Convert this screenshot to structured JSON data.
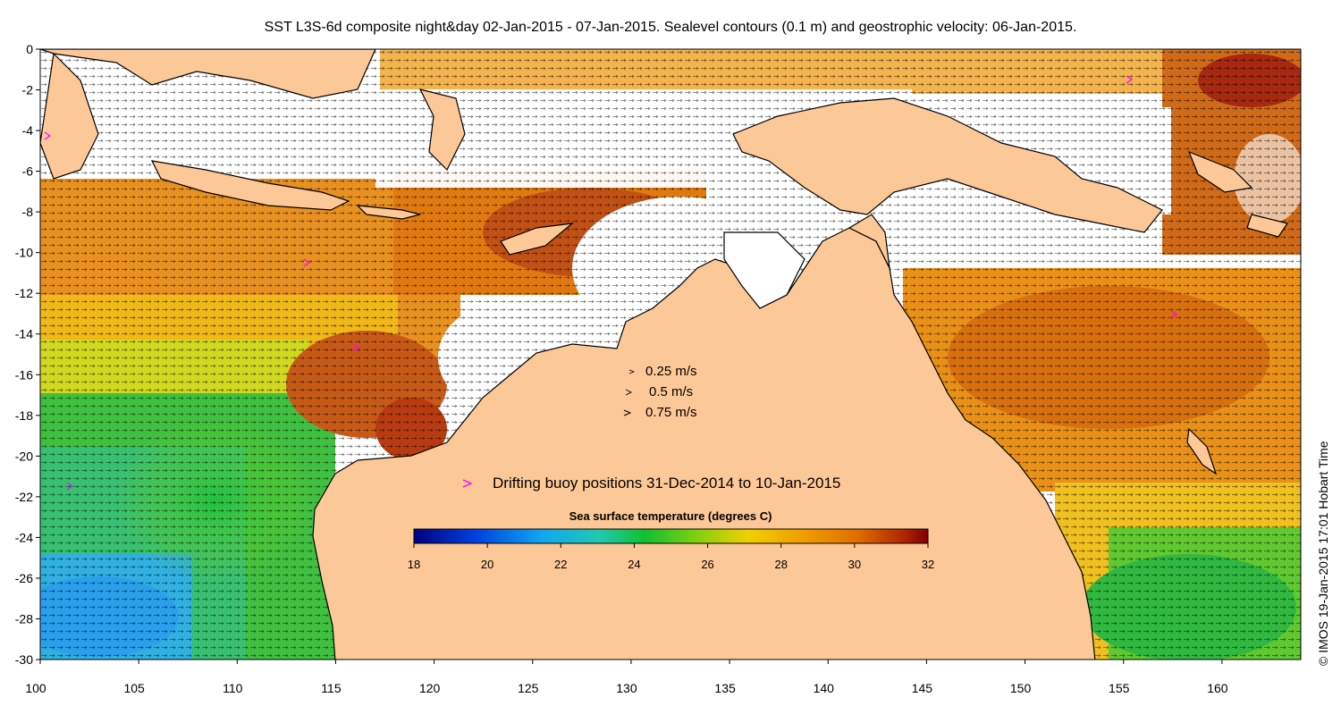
{
  "title": "SST L3S-6d composite night&day 02-Jan-2015 - 07-Jan-2015. Sealevel contours (0.1 m) and geostrophic velocity: 06-Jan-2015.",
  "credit": "© IMOS 19-Jan-2015 17:01 Hobart Time",
  "axes": {
    "x_ticks": [
      "100",
      "105",
      "110",
      "115",
      "120",
      "125",
      "130",
      "135",
      "140",
      "145",
      "150",
      "155",
      "160"
    ],
    "y_ticks": [
      "0",
      "-2",
      "-4",
      "-6",
      "-8",
      "-10",
      "-12",
      "-14",
      "-16",
      "-18",
      "-20",
      "-22",
      "-24",
      "-26",
      "-28",
      "-30"
    ],
    "lon_range": [
      100,
      164
    ],
    "lat_range": [
      -30,
      0
    ]
  },
  "velocity_legend": [
    {
      "label": "0.25 m/s"
    },
    {
      "label": "0.5 m/s"
    },
    {
      "label": "0.75 m/s"
    }
  ],
  "buoy_legend": {
    "symbol": ">",
    "label": "Drifting buoy positions 31-Dec-2014 to 10-Jan-2015",
    "color": "#ff00ff"
  },
  "colorbar": {
    "title": "Sea surface temperature (degrees C)",
    "ticks": [
      "18",
      "20",
      "22",
      "24",
      "26",
      "28",
      "30",
      "32"
    ],
    "range": [
      18,
      32
    ],
    "colors": [
      "#000080",
      "#0050e0",
      "#10b0f0",
      "#20c8a0",
      "#10c020",
      "#c0e010",
      "#f0b000",
      "#e07000",
      "#b02000",
      "#800000"
    ]
  },
  "colors": {
    "land": "#fdc898",
    "coast": "#000000",
    "nodata": "#ffffff",
    "warm": "#e07a10",
    "hot": "#c04810",
    "mild": "#f0b010",
    "cool": "#30c040",
    "cold": "#30a8e8"
  }
}
